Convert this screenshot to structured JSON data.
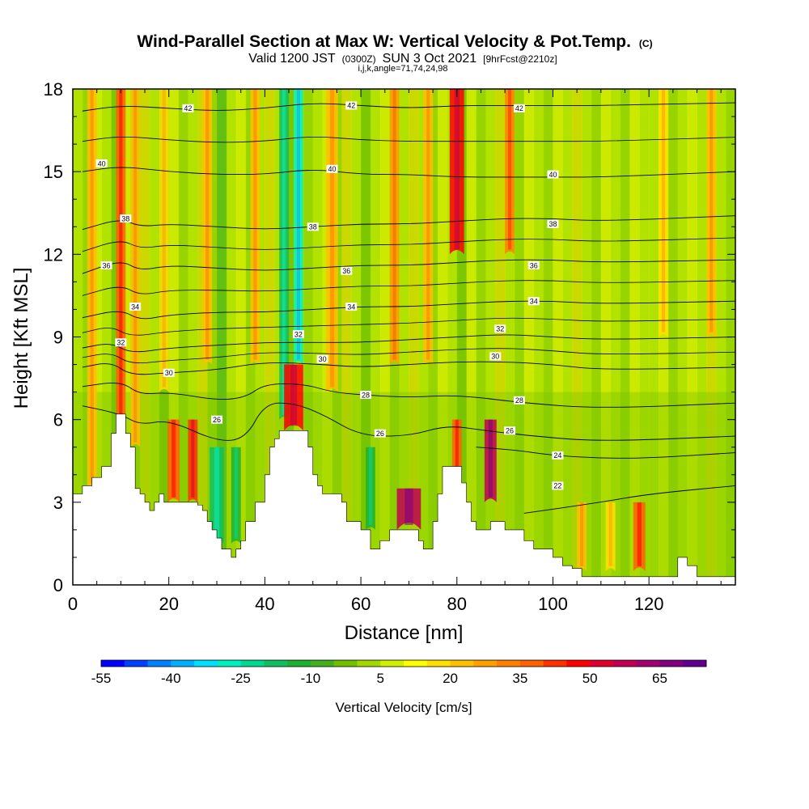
{
  "title": {
    "main": "Wind-Parallel Section at Max W: Vertical Velocity & Pot.Temp.",
    "mark": "(C)",
    "sub_prefix": "Valid 1200 JST",
    "sub_z": "(0300Z)",
    "sub_date": "SUN 3 Oct 2021",
    "sub_fcst": "[9hrFcst@2210z]",
    "params": "i,j,k,angle=71,74,24,98"
  },
  "chart_data": {
    "type": "heatmap",
    "xlabel": "Distance [nm]",
    "ylabel": "Height [Kft MSL]",
    "xlim": [
      0,
      138
    ],
    "ylim": [
      0,
      18
    ],
    "xticks": [
      0,
      20,
      40,
      60,
      80,
      100,
      120
    ],
    "yticks": [
      0,
      3,
      6,
      9,
      12,
      15,
      18
    ],
    "colorbar": {
      "title": "Vertical Velocity [cm/s]",
      "min": -55,
      "max": 75,
      "step": 5,
      "tick_labels": [
        -55,
        -40,
        -25,
        -10,
        5,
        20,
        35,
        50,
        65
      ],
      "colors": [
        "#0000ff",
        "#0040ff",
        "#0080ff",
        "#00b0ff",
        "#00e0ff",
        "#00f0c0",
        "#00d890",
        "#10c060",
        "#20b030",
        "#40b020",
        "#70c000",
        "#a0d800",
        "#d0f000",
        "#ffff00",
        "#ffe000",
        "#ffc000",
        "#ffa000",
        "#ff8000",
        "#ff6000",
        "#ff3000",
        "#ff0000",
        "#e00030",
        "#c00050",
        "#a00070",
        "#800080",
        "#600090"
      ]
    },
    "terrain": {
      "x": [
        0,
        2,
        4,
        6,
        8,
        9,
        10,
        11,
        12,
        13,
        14,
        15,
        16,
        17,
        18,
        19,
        20,
        22,
        24,
        26,
        27,
        28,
        29,
        30,
        31,
        32,
        33,
        34,
        35,
        36,
        38,
        40,
        41,
        42,
        43,
        44,
        46,
        48,
        49,
        50,
        51,
        52,
        54,
        56,
        57,
        58,
        59,
        60,
        62,
        63,
        64,
        66,
        68,
        70,
        72,
        73,
        74,
        75,
        76,
        77,
        78,
        79,
        80,
        81,
        82,
        83,
        84,
        86,
        87,
        88,
        89,
        90,
        92,
        94,
        96,
        97,
        98,
        100,
        102,
        104,
        105,
        106,
        108,
        110,
        112,
        114,
        116,
        118,
        119,
        120,
        121,
        122,
        123,
        124,
        125,
        126,
        128,
        130,
        132,
        134,
        136,
        138
      ],
      "height": [
        3.3,
        3.6,
        3.9,
        4.3,
        5.5,
        6.2,
        6.2,
        5.5,
        5.0,
        3.5,
        3.3,
        3.0,
        2.7,
        3.0,
        3.3,
        3.0,
        3.0,
        3.0,
        3.0,
        2.9,
        2.7,
        2.3,
        2.0,
        1.7,
        1.3,
        1.3,
        1.0,
        1.3,
        1.6,
        2.3,
        3.0,
        4.0,
        5.0,
        5.3,
        5.6,
        5.6,
        5.6,
        5.6,
        5.0,
        4.0,
        3.6,
        3.3,
        3.3,
        3.0,
        2.3,
        2.3,
        2.3,
        2.0,
        1.3,
        1.3,
        1.6,
        2.0,
        2.0,
        2.0,
        1.6,
        1.3,
        1.3,
        2.3,
        3.3,
        4.3,
        4.3,
        4.3,
        4.3,
        3.7,
        3.0,
        2.3,
        2.0,
        2.0,
        2.3,
        2.3,
        2.3,
        2.0,
        2.0,
        1.6,
        1.3,
        1.3,
        1.3,
        1.0,
        0.7,
        0.6,
        0.6,
        0.3,
        0.3,
        0.3,
        0.3,
        0.3,
        0.3,
        0.3,
        0.3,
        0.3,
        0.3,
        0.3,
        0.3,
        0.3,
        0.3,
        1.0,
        0.7,
        0.3,
        0.3,
        0.3,
        0.3,
        0.3
      ]
    },
    "theta_contours": [
      {
        "level": 22,
        "label": "22",
        "points": [
          [
            94,
            2.6
          ],
          [
            110,
            3.0
          ],
          [
            120,
            3.3
          ],
          [
            138,
            3.6
          ]
        ]
      },
      {
        "level": 24,
        "label": "24",
        "points": [
          [
            84,
            5.0
          ],
          [
            92,
            4.9
          ],
          [
            100,
            4.7
          ],
          [
            110,
            4.6
          ],
          [
            120,
            4.6
          ],
          [
            138,
            4.8
          ]
        ]
      },
      {
        "level": 26,
        "label": "26",
        "points": [
          [
            2,
            6.5
          ],
          [
            10,
            6.2
          ],
          [
            14,
            5.8
          ],
          [
            20,
            6.0
          ],
          [
            30,
            5.2
          ],
          [
            36,
            5.3
          ],
          [
            40,
            6.6
          ],
          [
            46,
            6.6
          ],
          [
            52,
            6.2
          ],
          [
            60,
            5.4
          ],
          [
            70,
            5.4
          ],
          [
            78,
            5.8
          ],
          [
            86,
            5.6
          ],
          [
            96,
            5.4
          ],
          [
            110,
            5.2
          ],
          [
            138,
            5.4
          ]
        ]
      },
      {
        "level": 28,
        "label": "28",
        "points": [
          [
            2,
            7.2
          ],
          [
            10,
            7.4
          ],
          [
            14,
            6.9
          ],
          [
            20,
            7.0
          ],
          [
            30,
            6.7
          ],
          [
            36,
            6.8
          ],
          [
            40,
            7.3
          ],
          [
            48,
            7.3
          ],
          [
            54,
            7.0
          ],
          [
            60,
            6.9
          ],
          [
            70,
            6.8
          ],
          [
            80,
            6.9
          ],
          [
            94,
            6.6
          ],
          [
            110,
            6.4
          ],
          [
            138,
            6.6
          ]
        ]
      },
      {
        "level": 30,
        "label": "30",
        "points": [
          [
            2,
            7.9
          ],
          [
            8,
            8.1
          ],
          [
            12,
            7.6
          ],
          [
            20,
            7.7
          ],
          [
            30,
            7.8
          ],
          [
            40,
            8.1
          ],
          [
            52,
            8.0
          ],
          [
            60,
            7.9
          ],
          [
            70,
            8.0
          ],
          [
            80,
            8.1
          ],
          [
            90,
            8.1
          ],
          [
            100,
            8.0
          ],
          [
            110,
            7.8
          ],
          [
            138,
            7.9
          ]
        ]
      },
      {
        "level": 32,
        "label": "32",
        "points": [
          [
            2,
            8.6
          ],
          [
            8,
            8.8
          ],
          [
            12,
            8.4
          ],
          [
            20,
            8.6
          ],
          [
            30,
            8.7
          ],
          [
            40,
            8.8
          ],
          [
            50,
            8.8
          ],
          [
            60,
            8.8
          ],
          [
            70,
            8.9
          ],
          [
            80,
            9.0
          ],
          [
            90,
            9.1
          ],
          [
            100,
            9.0
          ],
          [
            110,
            8.9
          ],
          [
            138,
            9.0
          ]
        ]
      },
      {
        "level": 34,
        "label": "34",
        "points": [
          [
            2,
            9.7
          ],
          [
            10,
            10.0
          ],
          [
            14,
            9.6
          ],
          [
            20,
            9.8
          ],
          [
            30,
            9.9
          ],
          [
            40,
            9.9
          ],
          [
            50,
            10.0
          ],
          [
            60,
            10.1
          ],
          [
            70,
            10.1
          ],
          [
            80,
            10.2
          ],
          [
            90,
            10.3
          ],
          [
            100,
            10.3
          ],
          [
            110,
            10.2
          ],
          [
            138,
            10.3
          ]
        ]
      },
      {
        "level": 36,
        "label": "36",
        "points": [
          [
            2,
            11.3
          ],
          [
            10,
            11.8
          ],
          [
            14,
            11.4
          ],
          [
            20,
            11.6
          ],
          [
            30,
            11.5
          ],
          [
            40,
            11.4
          ],
          [
            50,
            11.5
          ],
          [
            60,
            11.6
          ],
          [
            70,
            11.6
          ],
          [
            80,
            11.7
          ],
          [
            90,
            11.8
          ],
          [
            100,
            11.8
          ],
          [
            110,
            11.7
          ],
          [
            138,
            11.8
          ]
        ]
      },
      {
        "level": 38,
        "label": "38",
        "points": [
          [
            2,
            12.9
          ],
          [
            10,
            13.3
          ],
          [
            14,
            13.0
          ],
          [
            20,
            13.1
          ],
          [
            30,
            13.0
          ],
          [
            40,
            12.9
          ],
          [
            50,
            13.0
          ],
          [
            60,
            13.1
          ],
          [
            70,
            13.1
          ],
          [
            80,
            13.2
          ],
          [
            90,
            13.3
          ],
          [
            100,
            13.3
          ],
          [
            110,
            13.2
          ],
          [
            138,
            13.4
          ]
        ]
      },
      {
        "level": 40,
        "label": "40",
        "points": [
          [
            2,
            15.0
          ],
          [
            10,
            15.2
          ],
          [
            20,
            15.0
          ],
          [
            30,
            14.9
          ],
          [
            40,
            14.9
          ],
          [
            50,
            15.1
          ],
          [
            60,
            14.9
          ],
          [
            70,
            14.9
          ],
          [
            80,
            14.8
          ],
          [
            90,
            14.8
          ],
          [
            100,
            14.8
          ],
          [
            110,
            14.8
          ],
          [
            138,
            15.0
          ]
        ]
      },
      {
        "level": 42,
        "label": "42",
        "points": [
          [
            2,
            17.2
          ],
          [
            10,
            17.4
          ],
          [
            20,
            17.3
          ],
          [
            30,
            17.2
          ],
          [
            40,
            17.3
          ],
          [
            50,
            17.5
          ],
          [
            60,
            17.4
          ],
          [
            70,
            17.3
          ],
          [
            80,
            17.4
          ],
          [
            90,
            17.4
          ],
          [
            100,
            17.4
          ],
          [
            110,
            17.4
          ],
          [
            138,
            17.5
          ]
        ]
      }
    ],
    "contour_label_positions": [
      {
        "label": "42",
        "x": 24,
        "y": 17.3
      },
      {
        "label": "42",
        "x": 58,
        "y": 17.4
      },
      {
        "label": "42",
        "x": 93,
        "y": 17.3
      },
      {
        "label": "40",
        "x": 6,
        "y": 15.3
      },
      {
        "label": "40",
        "x": 54,
        "y": 15.1
      },
      {
        "label": "40",
        "x": 100,
        "y": 14.9
      },
      {
        "label": "38",
        "x": 11,
        "y": 13.3
      },
      {
        "label": "38",
        "x": 50,
        "y": 13.0
      },
      {
        "label": "38",
        "x": 100,
        "y": 13.1
      },
      {
        "label": "36",
        "x": 7,
        "y": 11.6
      },
      {
        "label": "36",
        "x": 57,
        "y": 11.4
      },
      {
        "label": "36",
        "x": 96,
        "y": 11.6
      },
      {
        "label": "34",
        "x": 13,
        "y": 10.1
      },
      {
        "label": "34",
        "x": 58,
        "y": 10.1
      },
      {
        "label": "34",
        "x": 96,
        "y": 10.3
      },
      {
        "label": "32",
        "x": 10,
        "y": 8.8
      },
      {
        "label": "32",
        "x": 47,
        "y": 9.1
      },
      {
        "label": "32",
        "x": 89,
        "y": 9.3
      },
      {
        "label": "30",
        "x": 20,
        "y": 7.7
      },
      {
        "label": "30",
        "x": 52,
        "y": 8.2
      },
      {
        "label": "30",
        "x": 88,
        "y": 8.3
      },
      {
        "label": "28",
        "x": 61,
        "y": 6.9
      },
      {
        "label": "28",
        "x": 93,
        "y": 6.7
      },
      {
        "label": "26",
        "x": 30,
        "y": 6.0
      },
      {
        "label": "26",
        "x": 64,
        "y": 5.5
      },
      {
        "label": "26",
        "x": 91,
        "y": 5.6
      },
      {
        "label": "24",
        "x": 101,
        "y": 4.7
      },
      {
        "label": "22",
        "x": 101,
        "y": 3.6
      }
    ],
    "velocity_features": [
      {
        "x": 4,
        "width": 2,
        "y_bottom": 3.5,
        "y_top": 18,
        "value": 20
      },
      {
        "x": 10,
        "width": 2,
        "y_bottom": 6,
        "y_top": 18,
        "value": 35
      },
      {
        "x": 13,
        "width": 2,
        "y_bottom": 5,
        "y_top": 18,
        "value": 20
      },
      {
        "x": 19,
        "width": 2,
        "y_bottom": 7,
        "y_top": 18,
        "value": 15
      },
      {
        "x": 21,
        "width": 2.5,
        "y_bottom": 3,
        "y_top": 6,
        "value": 35
      },
      {
        "x": 25,
        "width": 2,
        "y_bottom": 3,
        "y_top": 6,
        "value": 40
      },
      {
        "x": 28,
        "width": 2,
        "y_bottom": 8,
        "y_top": 18,
        "value": 20
      },
      {
        "x": 30,
        "width": 3,
        "y_bottom": 1.5,
        "y_top": 5,
        "value": -20
      },
      {
        "x": 34,
        "width": 2,
        "y_bottom": 1.5,
        "y_top": 5,
        "value": -15
      },
      {
        "x": 38,
        "width": 2,
        "y_bottom": 8,
        "y_top": 18,
        "value": 20
      },
      {
        "x": 44,
        "width": 2,
        "y_bottom": 6,
        "y_top": 18,
        "value": -20
      },
      {
        "x": 47,
        "width": 2,
        "y_bottom": 8,
        "y_top": 18,
        "value": -30
      },
      {
        "x": 46,
        "width": 4,
        "y_bottom": 5.6,
        "y_top": 8,
        "value": 45
      },
      {
        "x": 54,
        "width": 2.5,
        "y_bottom": 7,
        "y_top": 18,
        "value": 20
      },
      {
        "x": 62,
        "width": 2,
        "y_bottom": 2,
        "y_top": 5,
        "value": -15
      },
      {
        "x": 67,
        "width": 2,
        "y_bottom": 8,
        "y_top": 18,
        "value": 25
      },
      {
        "x": 70,
        "width": 5,
        "y_bottom": 2,
        "y_top": 3.5,
        "value": 55
      },
      {
        "x": 74,
        "width": 2,
        "y_bottom": 8,
        "y_top": 18,
        "value": 20
      },
      {
        "x": 80,
        "width": 3,
        "y_bottom": 12,
        "y_top": 18,
        "value": 45
      },
      {
        "x": 80,
        "width": 2,
        "y_bottom": 3.3,
        "y_top": 6,
        "value": 35
      },
      {
        "x": 87,
        "width": 2.5,
        "y_bottom": 3,
        "y_top": 6,
        "value": 55
      },
      {
        "x": 91,
        "width": 2,
        "y_bottom": 12,
        "y_top": 18,
        "value": 30
      },
      {
        "x": 106,
        "width": 2,
        "y_bottom": 0.5,
        "y_top": 3,
        "value": 20
      },
      {
        "x": 112,
        "width": 2,
        "y_bottom": 0.5,
        "y_top": 3,
        "value": 15
      },
      {
        "x": 118,
        "width": 2.5,
        "y_bottom": 0.5,
        "y_top": 3,
        "value": 35
      },
      {
        "x": 123,
        "width": 2,
        "y_bottom": 9,
        "y_top": 18,
        "value": 15
      },
      {
        "x": 133,
        "width": 2,
        "y_bottom": 9,
        "y_top": 18,
        "value": 20
      }
    ]
  }
}
